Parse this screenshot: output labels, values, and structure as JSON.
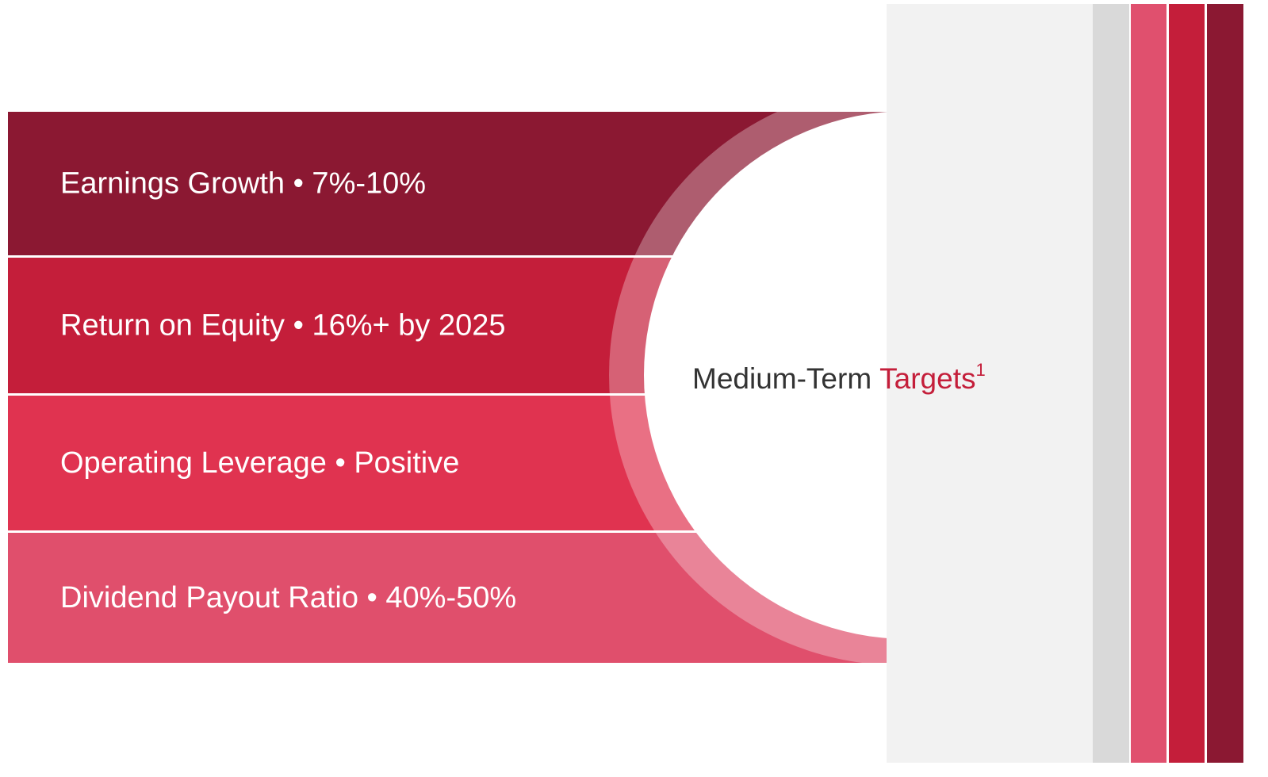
{
  "targets": [
    "Earnings Growth • 7%-10%",
    "Return on Equity • 16%+ by 2025",
    "Operating Leverage • Positive",
    "Dividend Payout Ratio • 40%-50%"
  ],
  "center": {
    "title_main": "Medium-Term",
    "title_accent": "Targets",
    "footnote_mark": "1"
  }
}
